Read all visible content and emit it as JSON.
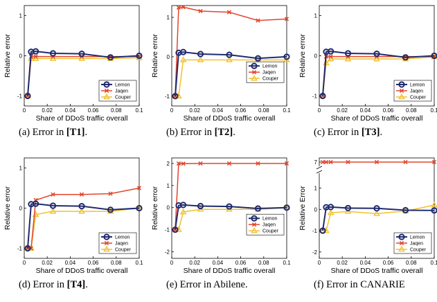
{
  "colors": {
    "Lemon": "#1f2a6e",
    "Jaqen": "#e2442b",
    "Couper": "#f2c12e"
  },
  "chart_data": [
    {
      "type": "line",
      "caption": [
        "(a)  Error in ",
        "[T1]",
        "."
      ],
      "xlabel": "Share of DDoS traffic overall",
      "ylabel": "Relative error",
      "xlim": [
        0,
        0.1
      ],
      "ylim": [
        -1.25,
        1.25
      ],
      "x_ticks": [
        "0",
        "0.02",
        "0.04",
        "0.06",
        "0.08",
        "0.1"
      ],
      "y_ticks": [
        "-1",
        "0",
        "1"
      ],
      "y_tick_values": [
        -1,
        0,
        1
      ],
      "x": [
        0.003,
        0.006,
        0.01,
        0.025,
        0.05,
        0.075,
        0.1
      ],
      "legend_placement": "lower-right",
      "series": [
        {
          "name": "Lemon",
          "values": [
            -1,
            0.1,
            0.11,
            0.06,
            0.05,
            -0.04,
            0.0
          ]
        },
        {
          "name": "Jaqen",
          "values": [
            -1,
            -0.02,
            -0.02,
            -0.02,
            -0.02,
            -0.02,
            -0.02
          ]
        },
        {
          "name": "Couper",
          "values": [
            -1,
            -0.07,
            -0.07,
            -0.07,
            -0.07,
            -0.07,
            -0.05
          ]
        }
      ]
    },
    {
      "type": "line",
      "caption": [
        "(b)  Error in ",
        "[T2]",
        "."
      ],
      "xlabel": "Share of DDoS traffic overall",
      "ylabel": "Relative error",
      "xlim": [
        0,
        0.1
      ],
      "ylim": [
        -1.25,
        1.3
      ],
      "x_ticks": [
        "0",
        "0.02",
        "0.04",
        "0.06",
        "0.08",
        "0.1"
      ],
      "y_ticks": [
        "-1",
        "0",
        "1"
      ],
      "y_tick_values": [
        -1,
        0,
        1
      ],
      "x": [
        0.003,
        0.006,
        0.01,
        0.025,
        0.05,
        0.075,
        0.1
      ],
      "legend_placement": "center-right",
      "series": [
        {
          "name": "Lemon",
          "values": [
            -1,
            0.1,
            0.12,
            0.07,
            0.05,
            -0.04,
            0.0
          ]
        },
        {
          "name": "Jaqen",
          "values": [
            -1,
            1.25,
            1.26,
            1.16,
            1.13,
            0.92,
            0.96
          ]
        },
        {
          "name": "Couper",
          "values": [
            -1,
            -1.0,
            -0.08,
            -0.08,
            -0.08,
            -0.08,
            -0.08
          ]
        }
      ]
    },
    {
      "type": "line",
      "caption": [
        "(c)  Error in ",
        "[T3]",
        "."
      ],
      "xlabel": "Share of DDoS traffic overall",
      "ylabel": "Relative error",
      "xlim": [
        0,
        0.1
      ],
      "ylim": [
        -1.25,
        1.25
      ],
      "x_ticks": [
        "0",
        "0.02",
        "0.04",
        "0.06",
        "0.08",
        "0.1"
      ],
      "y_ticks": [
        "-1",
        "0",
        "1"
      ],
      "y_tick_values": [
        -1,
        0,
        1
      ],
      "x": [
        0.003,
        0.006,
        0.01,
        0.025,
        0.05,
        0.075,
        0.1
      ],
      "legend_placement": "lower-right",
      "series": [
        {
          "name": "Lemon",
          "values": [
            -1,
            0.1,
            0.11,
            0.06,
            0.05,
            -0.04,
            0.0
          ]
        },
        {
          "name": "Jaqen",
          "values": [
            -1,
            -0.02,
            -0.02,
            -0.02,
            -0.02,
            -0.02,
            -0.02
          ]
        },
        {
          "name": "Couper",
          "values": [
            -1,
            -0.18,
            -0.08,
            -0.08,
            -0.08,
            -0.08,
            -0.03
          ]
        }
      ]
    },
    {
      "type": "line",
      "caption": [
        "(d)  Error in ",
        "[T4]",
        "."
      ],
      "xlabel": "Share of DDoS traffic overall",
      "ylabel": "Relative error",
      "xlim": [
        0,
        0.1
      ],
      "ylim": [
        -1.25,
        1.25
      ],
      "x_ticks": [
        "0",
        "0.02",
        "0.04",
        "0.06",
        "0.08",
        "0.1"
      ],
      "y_ticks": [
        "-1",
        "0",
        "1"
      ],
      "y_tick_values": [
        -1,
        0,
        1
      ],
      "x": [
        0.003,
        0.006,
        0.01,
        0.025,
        0.05,
        0.075,
        0.1
      ],
      "legend_placement": "lower-right",
      "series": [
        {
          "name": "Lemon",
          "values": [
            -1,
            0.1,
            0.11,
            0.06,
            0.05,
            -0.04,
            0.0
          ]
        },
        {
          "name": "Jaqen",
          "values": [
            -1,
            -1.0,
            0.2,
            0.34,
            0.34,
            0.36,
            0.5
          ]
        },
        {
          "name": "Couper",
          "values": [
            -1,
            -1.0,
            -0.16,
            -0.08,
            -0.08,
            -0.08,
            0.0
          ]
        }
      ]
    },
    {
      "type": "line",
      "caption": [
        "(e)  Error in Abilene."
      ],
      "xlabel": "Share of DDoS traffic overall",
      "ylabel": "Relative error",
      "xlim": [
        0,
        0.1
      ],
      "ylim": [
        -2.3,
        2.25
      ],
      "x_ticks": [
        "0",
        "0.02",
        "0.04",
        "0.06",
        "0.08",
        "0.1"
      ],
      "y_ticks": [
        "-2",
        "-1",
        "0",
        "1",
        "2"
      ],
      "y_tick_values": [
        -2,
        -1,
        0,
        1,
        2
      ],
      "x": [
        0.003,
        0.006,
        0.01,
        0.025,
        0.05,
        0.075,
        0.1
      ],
      "legend_placement": "center-right",
      "series": [
        {
          "name": "Lemon",
          "values": [
            -1,
            0.1,
            0.12,
            0.07,
            0.05,
            -0.04,
            0.0
          ]
        },
        {
          "name": "Jaqen",
          "values": [
            -1,
            2.0,
            1.99,
            2.0,
            2.0,
            2.0,
            2.0
          ]
        },
        {
          "name": "Couper",
          "values": [
            -1,
            -1.0,
            -0.2,
            -0.08,
            -0.08,
            -0.08,
            0.0
          ]
        }
      ]
    },
    {
      "type": "line",
      "caption": [
        "(f)  Error in CANARIE"
      ],
      "xlabel": "Share of DDoS traffic overall",
      "ylabel": "Relative Error",
      "xlim": [
        0,
        0.1
      ],
      "broken_axis": true,
      "ylim_lower": [
        -2.3,
        1.7
      ],
      "ylim_upper": [
        6.8,
        7.2
      ],
      "x_ticks": [
        "0",
        "0.02",
        "0.04",
        "0.06",
        "0.08",
        "0.1"
      ],
      "y_ticks": [
        "-2",
        "-1",
        "0",
        "1",
        "7"
      ],
      "y_tick_values": [
        -2,
        -1,
        0,
        1,
        7
      ],
      "x": [
        0.003,
        0.006,
        0.01,
        0.025,
        0.05,
        0.075,
        0.1
      ],
      "legend_placement": "lower-right",
      "series": [
        {
          "name": "Lemon",
          "values": [
            -1,
            0.1,
            0.11,
            0.06,
            0.05,
            -0.04,
            -0.05
          ]
        },
        {
          "name": "Jaqen",
          "values": [
            7.0,
            7.0,
            7.0,
            7.0,
            7.0,
            7.0,
            7.0
          ]
        },
        {
          "name": "Couper",
          "values": [
            -1,
            -1.0,
            -0.16,
            -0.1,
            -0.2,
            -0.08,
            0.2
          ]
        }
      ]
    }
  ]
}
